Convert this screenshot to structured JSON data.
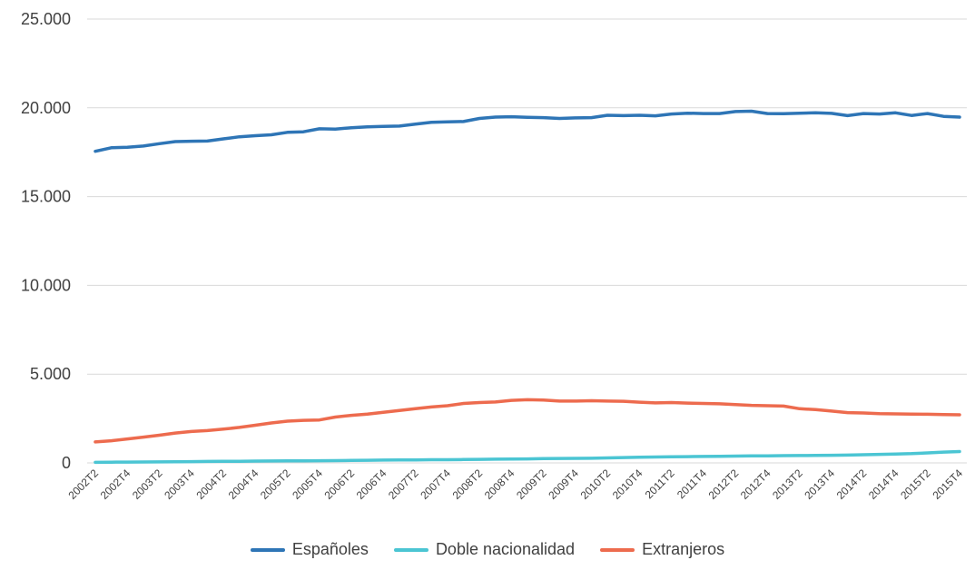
{
  "chart_data": {
    "type": "line",
    "title": "",
    "xlabel": "",
    "ylabel": "",
    "ylim": [
      0,
      25000
    ],
    "y_ticks": [
      "0",
      "5.000",
      "10.000",
      "15.000",
      "20.000",
      "25.000"
    ],
    "y_tick_values": [
      0,
      5000,
      10000,
      15000,
      20000,
      25000
    ],
    "grid": "horizontal",
    "legend_position": "bottom",
    "x": [
      "2002T2",
      "2002T3",
      "2002T4",
      "2003T1",
      "2003T2",
      "2003T3",
      "2003T4",
      "2004T1",
      "2004T2",
      "2004T3",
      "2004T4",
      "2005T1",
      "2005T2",
      "2005T3",
      "2005T4",
      "2006T1",
      "2006T2",
      "2006T3",
      "2006T4",
      "2007T1",
      "2007T2",
      "2007T3",
      "2007T4",
      "2008T1",
      "2008T2",
      "2008T3",
      "2008T4",
      "2009T1",
      "2009T2",
      "2009T3",
      "2009T4",
      "2010T1",
      "2010T2",
      "2010T3",
      "2010T4",
      "2011T1",
      "2011T2",
      "2011T3",
      "2011T4",
      "2012T1",
      "2012T2",
      "2012T3",
      "2012T4",
      "2013T1",
      "2013T2",
      "2013T3",
      "2013T4",
      "2014T1",
      "2014T2",
      "2014T3",
      "2014T4",
      "2015T1",
      "2015T2",
      "2015T3",
      "2015T4"
    ],
    "x_tick_labels": [
      "2002T2",
      "2002T4",
      "2003T2",
      "2003T4",
      "2004T2",
      "2004T4",
      "2005T2",
      "2005T4",
      "2006T2",
      "2006T4",
      "2007T2",
      "2007T4",
      "2008T2",
      "2008T4",
      "2009T2",
      "2009T4",
      "2010T2",
      "2010T4",
      "2011T2",
      "2011T4",
      "2012T2",
      "2012T4",
      "2013T2",
      "2013T4",
      "2014T2",
      "2014T4",
      "2015T2",
      "2015T4"
    ],
    "series": [
      {
        "name": "Españoles",
        "color": "#2e75b6",
        "values": [
          17550,
          17750,
          17780,
          17850,
          17980,
          18100,
          18120,
          18130,
          18250,
          18370,
          18430,
          18480,
          18620,
          18650,
          18820,
          18800,
          18880,
          18930,
          18950,
          18970,
          19080,
          19180,
          19210,
          19230,
          19400,
          19480,
          19500,
          19470,
          19450,
          19400,
          19430,
          19450,
          19580,
          19560,
          19580,
          19550,
          19650,
          19700,
          19680,
          19680,
          19790,
          19810,
          19680,
          19670,
          19700,
          19720,
          19690,
          19560,
          19680,
          19650,
          19720,
          19570,
          19680,
          19520,
          19480
        ]
      },
      {
        "name": "Doble nacionalidad",
        "color": "#4bc5d3",
        "values": [
          30,
          40,
          45,
          50,
          55,
          60,
          70,
          80,
          85,
          90,
          100,
          105,
          115,
          120,
          125,
          130,
          140,
          150,
          160,
          165,
          170,
          180,
          180,
          190,
          200,
          210,
          215,
          225,
          240,
          250,
          255,
          260,
          280,
          300,
          315,
          330,
          345,
          355,
          365,
          375,
          385,
          395,
          400,
          410,
          415,
          420,
          430,
          440,
          460,
          480,
          500,
          520,
          560,
          610,
          640
        ]
      },
      {
        "name": "Extranjeros",
        "color": "#ed6b4e",
        "values": [
          1180,
          1250,
          1350,
          1450,
          1560,
          1680,
          1770,
          1820,
          1900,
          2000,
          2120,
          2250,
          2350,
          2400,
          2420,
          2580,
          2680,
          2750,
          2850,
          2950,
          3050,
          3150,
          3220,
          3350,
          3400,
          3430,
          3520,
          3560,
          3540,
          3480,
          3480,
          3500,
          3480,
          3470,
          3420,
          3380,
          3400,
          3370,
          3350,
          3330,
          3280,
          3240,
          3220,
          3200,
          3050,
          3000,
          2920,
          2830,
          2810,
          2770,
          2760,
          2750,
          2740,
          2720,
          2710
        ]
      }
    ]
  }
}
